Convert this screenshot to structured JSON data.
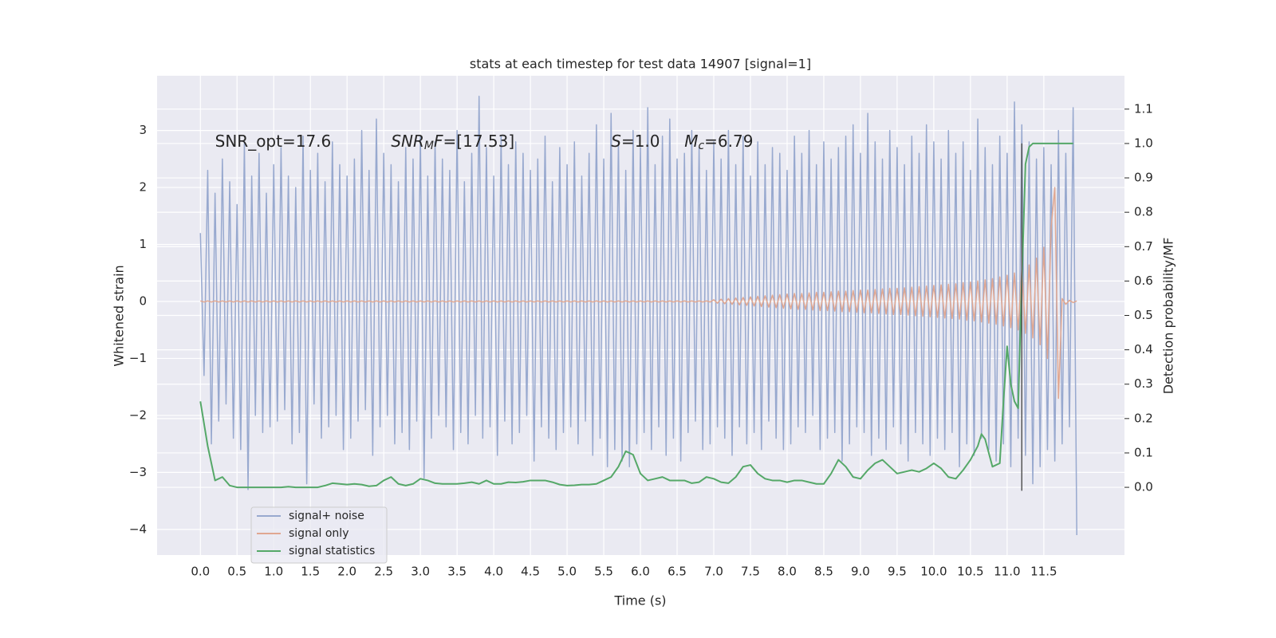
{
  "chart_data": {
    "type": "line",
    "title": "stats at each timestep for test data 14907 [signal=1]",
    "xlabel": "Time (s)",
    "ylabel": "Whitened strain",
    "y2label": "Detection probability/MF",
    "xlim": [
      -0.59,
      12.6
    ],
    "ylim": [
      -4.45,
      3.96
    ],
    "y2lim": [
      -0.197,
      1.197
    ],
    "xticks": [
      {
        "value": 0,
        "label": "0.0"
      },
      0.5,
      {
        "value": 1,
        "label": "1.0"
      },
      1.5,
      {
        "value": 2,
        "label": "2.0"
      },
      2.5,
      {
        "value": 3,
        "label": "3.0"
      },
      3.5,
      {
        "value": 4,
        "label": "4.0"
      },
      4.5,
      {
        "value": 5,
        "label": "5.0"
      },
      5.5,
      {
        "value": 6,
        "label": "6.0"
      },
      6.5,
      {
        "value": 7,
        "label": "7.0"
      },
      7.5,
      {
        "value": 8,
        "label": "8.0"
      },
      8.5,
      {
        "value": 9,
        "label": "9.0"
      },
      9.5,
      {
        "value": 10,
        "label": "10.0"
      },
      10.5,
      {
        "value": 11,
        "label": "11.0"
      },
      11.5
    ],
    "yticks": [
      {
        "value": -4,
        "label": "−4"
      },
      {
        "value": -3,
        "label": "−3"
      },
      {
        "value": -2,
        "label": "−2"
      },
      {
        "value": -1,
        "label": "−1"
      },
      0,
      1,
      2,
      3
    ],
    "y2ticks": [
      {
        "value": 0,
        "label": "0.0"
      },
      0.1,
      0.2,
      0.3,
      0.4,
      0.5,
      0.6,
      0.7,
      0.8,
      0.9,
      {
        "value": 1,
        "label": "1.0"
      },
      1.1
    ],
    "grid": true,
    "legend": "lower left",
    "x": [
      0,
      0.05,
      0.1,
      0.15,
      0.2,
      0.25,
      0.3,
      0.35,
      0.4,
      0.45,
      0.5,
      0.55,
      0.6,
      0.65,
      0.7,
      0.75,
      0.8,
      0.85,
      0.9,
      0.95,
      1,
      1.05,
      1.1,
      1.15,
      1.2,
      1.25,
      1.3,
      1.35,
      1.4,
      1.45,
      1.5,
      1.55,
      1.6,
      1.65,
      1.7,
      1.75,
      1.8,
      1.85,
      1.9,
      1.95,
      2,
      2.05,
      2.1,
      2.15,
      2.2,
      2.25,
      2.3,
      2.35,
      2.4,
      2.45,
      2.5,
      2.55,
      2.6,
      2.65,
      2.7,
      2.75,
      2.8,
      2.85,
      2.9,
      2.95,
      3,
      3.05,
      3.1,
      3.15,
      3.2,
      3.25,
      3.3,
      3.35,
      3.4,
      3.45,
      3.5,
      3.55,
      3.6,
      3.65,
      3.7,
      3.75,
      3.8,
      3.85,
      3.9,
      3.95,
      4,
      4.05,
      4.1,
      4.15,
      4.2,
      4.25,
      4.3,
      4.35,
      4.4,
      4.45,
      4.5,
      4.55,
      4.6,
      4.65,
      4.7,
      4.75,
      4.8,
      4.85,
      4.9,
      4.95,
      5,
      5.05,
      5.1,
      5.15,
      5.2,
      5.25,
      5.3,
      5.35,
      5.4,
      5.45,
      5.5,
      5.55,
      5.6,
      5.65,
      5.7,
      5.75,
      5.8,
      5.85,
      5.9,
      5.95,
      6,
      6.05,
      6.1,
      6.15,
      6.2,
      6.25,
      6.3,
      6.35,
      6.4,
      6.45,
      6.5,
      6.55,
      6.6,
      6.65,
      6.7,
      6.75,
      6.8,
      6.85,
      6.9,
      6.95,
      7,
      7.05,
      7.1,
      7.15,
      7.2,
      7.25,
      7.3,
      7.35,
      7.4,
      7.45,
      7.5,
      7.55,
      7.6,
      7.65,
      7.7,
      7.75,
      7.8,
      7.85,
      7.9,
      7.95,
      8,
      8.05,
      8.1,
      8.15,
      8.2,
      8.25,
      8.3,
      8.35,
      8.4,
      8.45,
      8.5,
      8.55,
      8.6,
      8.65,
      8.7,
      8.75,
      8.8,
      8.85,
      8.9,
      8.95,
      9,
      9.05,
      9.1,
      9.15,
      9.2,
      9.25,
      9.3,
      9.35,
      9.4,
      9.45,
      9.5,
      9.55,
      9.6,
      9.65,
      9.7,
      9.75,
      9.8,
      9.85,
      9.9,
      9.95,
      10,
      10.05,
      10.1,
      10.15,
      10.2,
      10.25,
      10.3,
      10.35,
      10.4,
      10.45,
      10.5,
      10.55,
      10.6,
      10.65,
      10.7,
      10.75,
      10.8,
      10.85,
      10.9,
      10.95,
      11,
      11.05,
      11.1,
      11.15,
      11.2,
      11.25,
      11.3,
      11.35,
      11.4,
      11.45,
      11.5,
      11.55,
      11.6,
      11.65,
      11.7,
      11.75,
      11.8,
      11.85,
      11.9,
      11.95
    ],
    "series": [
      {
        "name": "signal+ noise",
        "color": "#98a9cf",
        "axis": "y",
        "values": [
          1.2,
          -1.3,
          2.3,
          -2.5,
          1.9,
          -2.1,
          2.5,
          -1.8,
          2.1,
          -2.4,
          1.7,
          -2.6,
          2.8,
          -3.3,
          2.2,
          -2.0,
          2.6,
          -2.3,
          1.9,
          -2.2,
          2.4,
          -2.1,
          2.7,
          -1.9,
          2.2,
          -2.5,
          2.0,
          -2.3,
          2.9,
          -3.2,
          2.3,
          -1.8,
          2.6,
          -2.4,
          2.1,
          -2.2,
          2.8,
          -2.0,
          2.4,
          -2.6,
          2.2,
          -2.4,
          2.5,
          -2.1,
          3.0,
          -1.9,
          2.3,
          -2.7,
          3.2,
          -2.2,
          2.6,
          -2.0,
          2.4,
          -2.5,
          2.1,
          -2.3,
          2.7,
          -2.6,
          2.5,
          -2.1,
          2.9,
          -3.1,
          2.2,
          -2.4,
          2.8,
          -2.0,
          2.5,
          -2.2,
          2.3,
          -2.6,
          3.0,
          -2.3,
          2.1,
          -2.5,
          2.6,
          -2.0,
          3.6,
          -2.4,
          2.7,
          -2.2,
          2.2,
          -2.7,
          2.9,
          -2.1,
          2.4,
          -2.5,
          2.8,
          -2.3,
          2.6,
          -2.0,
          2.3,
          -2.8,
          2.5,
          -2.2,
          2.9,
          -2.4,
          2.1,
          -2.6,
          2.7,
          -2.3,
          2.4,
          -2.2,
          2.8,
          -2.5,
          2.2,
          -2.1,
          2.6,
          -2.7,
          3.1,
          -2.4,
          2.5,
          -2.9,
          3.3,
          -2.6,
          2.8,
          -2.8,
          2.3,
          -2.9,
          3.0,
          -2.5,
          2.7,
          -2.3,
          3.4,
          -2.6,
          2.4,
          -2.2,
          2.9,
          -2.7,
          3.2,
          -2.4,
          2.5,
          -2.8,
          2.6,
          -2.3,
          3.0,
          -2.1,
          2.7,
          -2.6,
          2.3,
          -2.5,
          2.8,
          -2.2,
          2.5,
          -2.4,
          3.0,
          -2.7,
          2.4,
          -2.2,
          2.9,
          -2.5,
          2.2,
          -2.3,
          2.8,
          -2.6,
          2.4,
          -2.1,
          2.7,
          -2.4,
          2.6,
          -2.6,
          2.3,
          -2.5,
          2.9,
          -2.2,
          2.6,
          -2.3,
          3.0,
          -2.0,
          2.4,
          -2.6,
          2.8,
          -2.4,
          2.5,
          -2.3,
          2.7,
          -2.8,
          2.9,
          -2.5,
          3.1,
          -2.2,
          2.6,
          -2.3,
          3.3,
          -2.7,
          2.8,
          -2.4,
          2.5,
          -2.6,
          3.0,
          -2.2,
          2.7,
          -2.5,
          2.4,
          -2.8,
          2.9,
          -2.3,
          2.6,
          -2.5,
          3.1,
          -2.7,
          2.8,
          -2.4,
          2.5,
          -2.6,
          3.0,
          -2.3,
          2.6,
          -2.9,
          2.8,
          -2.5,
          2.3,
          -2.7,
          3.2,
          -2.4,
          2.7,
          -2.6,
          2.4,
          -2.8,
          2.9,
          -2.5,
          2.6,
          -2.9,
          3.5,
          -2.4,
          3.1,
          -2.7,
          2.8,
          -3.2,
          2.5,
          -2.9,
          2.7,
          -2.6,
          2.4,
          -2.8,
          3.0,
          -2.5,
          2.6,
          -2.2,
          3.4,
          -4.1
        ]
      },
      {
        "name": "signal only",
        "color": "#e0a791",
        "axis": "y",
        "values": [
          0.01,
          -0.01,
          0.01,
          -0.01,
          0.01,
          -0.01,
          0.01,
          -0.01,
          0.01,
          -0.01,
          0.01,
          -0.01,
          0.01,
          -0.01,
          0.01,
          -0.01,
          0.01,
          -0.01,
          0.01,
          -0.01,
          0.01,
          -0.01,
          0.01,
          -0.01,
          0.01,
          -0.01,
          0.01,
          -0.01,
          0.01,
          -0.01,
          0.01,
          -0.01,
          0.01,
          -0.01,
          0.01,
          -0.01,
          0.01,
          -0.01,
          0.01,
          -0.01,
          0.01,
          -0.01,
          0.01,
          -0.01,
          0.01,
          -0.01,
          0.01,
          -0.01,
          0.01,
          -0.01,
          0.01,
          -0.01,
          0.01,
          -0.01,
          0.01,
          -0.01,
          0.01,
          -0.01,
          0.01,
          -0.01,
          0.01,
          -0.01,
          0.01,
          -0.01,
          0.01,
          -0.01,
          0.01,
          -0.01,
          0.01,
          -0.01,
          0.01,
          -0.01,
          0.01,
          -0.01,
          0.01,
          -0.01,
          0.01,
          -0.01,
          0.01,
          -0.01,
          0.01,
          -0.01,
          0.01,
          -0.01,
          0.01,
          -0.01,
          0.01,
          -0.01,
          0.01,
          -0.01,
          0.01,
          -0.01,
          0.01,
          -0.01,
          0.01,
          -0.01,
          0.01,
          -0.01,
          0.01,
          -0.01,
          0.01,
          -0.01,
          0.01,
          -0.01,
          0.01,
          -0.01,
          0.01,
          -0.01,
          0.01,
          -0.01,
          0.01,
          -0.01,
          0.01,
          -0.01,
          0.01,
          -0.01,
          0.01,
          -0.01,
          0.01,
          -0.01,
          0.01,
          -0.01,
          0.01,
          -0.01,
          0.01,
          -0.01,
          0.01,
          -0.01,
          0.01,
          -0.01,
          0.01,
          -0.01,
          0.01,
          -0.01,
          0.01,
          -0.01,
          0.01,
          -0.01,
          0.01,
          -0.01,
          0.03,
          -0.03,
          0.04,
          -0.04,
          0.05,
          -0.05,
          0.06,
          -0.06,
          0.07,
          -0.07,
          0.08,
          -0.08,
          0.09,
          -0.09,
          0.1,
          -0.1,
          0.11,
          -0.11,
          0.12,
          -0.12,
          0.13,
          -0.13,
          0.14,
          -0.14,
          0.14,
          -0.14,
          0.15,
          -0.15,
          0.16,
          -0.16,
          0.16,
          -0.16,
          0.17,
          -0.17,
          0.18,
          -0.18,
          0.18,
          -0.18,
          0.19,
          -0.19,
          0.2,
          -0.2,
          0.2,
          -0.2,
          0.21,
          -0.21,
          0.22,
          -0.22,
          0.23,
          -0.23,
          0.23,
          -0.23,
          0.24,
          -0.24,
          0.25,
          -0.25,
          0.26,
          -0.26,
          0.27,
          -0.27,
          0.28,
          -0.28,
          0.29,
          -0.29,
          0.3,
          -0.3,
          0.31,
          -0.31,
          0.33,
          -0.33,
          0.34,
          -0.34,
          0.36,
          -0.36,
          0.38,
          -0.38,
          0.4,
          -0.4,
          0.43,
          -0.43,
          0.46,
          -0.46,
          0.5,
          -0.5,
          0.56,
          -0.56,
          0.64,
          -0.64,
          0.76,
          -0.76,
          0.95,
          -1.0,
          1.3,
          2.0,
          -1.7,
          0.05,
          -0.05,
          0.02,
          -0.02,
          0.01
        ]
      },
      {
        "name": "signal statistics",
        "color": "#55a868",
        "axis": "y2",
        "x": [
          0,
          0.1,
          0.2,
          0.3,
          0.4,
          0.5,
          0.6,
          0.7,
          0.8,
          0.9,
          1,
          1.1,
          1.2,
          1.3,
          1.4,
          1.5,
          1.6,
          1.7,
          1.8,
          1.9,
          2,
          2.1,
          2.2,
          2.3,
          2.4,
          2.5,
          2.6,
          2.7,
          2.8,
          2.9,
          3,
          3.1,
          3.2,
          3.3,
          3.4,
          3.5,
          3.6,
          3.7,
          3.8,
          3.9,
          4,
          4.1,
          4.2,
          4.3,
          4.4,
          4.5,
          4.6,
          4.7,
          4.8,
          4.9,
          5,
          5.1,
          5.2,
          5.3,
          5.4,
          5.5,
          5.6,
          5.7,
          5.8,
          5.9,
          6,
          6.1,
          6.2,
          6.3,
          6.4,
          6.5,
          6.6,
          6.7,
          6.8,
          6.9,
          7,
          7.1,
          7.2,
          7.3,
          7.4,
          7.5,
          7.6,
          7.7,
          7.8,
          7.9,
          8,
          8.1,
          8.2,
          8.3,
          8.4,
          8.5,
          8.6,
          8.7,
          8.8,
          8.9,
          9,
          9.1,
          9.2,
          9.3,
          9.4,
          9.5,
          9.6,
          9.7,
          9.8,
          9.9,
          10,
          10.1,
          10.2,
          10.3,
          10.4,
          10.5,
          10.6,
          10.65,
          10.7,
          10.8,
          10.9,
          10.95,
          11,
          11.05,
          11.1,
          11.15,
          11.2,
          11.25,
          11.3,
          11.35,
          11.4,
          11.5,
          11.6,
          11.7,
          11.8,
          11.9
        ],
        "values": [
          0.25,
          0.12,
          0.02,
          0.03,
          0.005,
          0.0,
          0.0,
          0.0,
          0.0,
          0.0,
          0.0,
          0.0,
          0.002,
          0.0,
          0.0,
          0.0,
          0.0,
          0.005,
          0.012,
          0.01,
          0.008,
          0.01,
          0.008,
          0.003,
          0.005,
          0.02,
          0.03,
          0.01,
          0.005,
          0.01,
          0.025,
          0.02,
          0.012,
          0.01,
          0.01,
          0.01,
          0.012,
          0.015,
          0.01,
          0.02,
          0.01,
          0.01,
          0.015,
          0.014,
          0.016,
          0.02,
          0.02,
          0.02,
          0.015,
          0.008,
          0.005,
          0.006,
          0.008,
          0.008,
          0.01,
          0.02,
          0.03,
          0.06,
          0.105,
          0.095,
          0.04,
          0.02,
          0.025,
          0.03,
          0.02,
          0.02,
          0.02,
          0.012,
          0.015,
          0.03,
          0.025,
          0.015,
          0.012,
          0.03,
          0.06,
          0.065,
          0.04,
          0.025,
          0.02,
          0.02,
          0.015,
          0.02,
          0.02,
          0.015,
          0.01,
          0.01,
          0.04,
          0.08,
          0.06,
          0.03,
          0.025,
          0.05,
          0.07,
          0.08,
          0.06,
          0.04,
          0.045,
          0.05,
          0.045,
          0.055,
          0.07,
          0.055,
          0.03,
          0.025,
          0.05,
          0.08,
          0.12,
          0.155,
          0.14,
          0.06,
          0.07,
          0.25,
          0.41,
          0.3,
          0.25,
          0.23,
          0.6,
          0.94,
          0.99,
          1.0,
          1.0,
          1.0,
          1.0,
          1.0,
          1.0,
          1.0
        ]
      }
    ],
    "vline": {
      "x": 11.2,
      "ymin": -0.01,
      "ymax": 1.0,
      "axis": "y2",
      "color": "#555555"
    },
    "annotations": [
      {
        "x": 0.2,
        "y": 2.8,
        "segments": [
          {
            "text": "SNR_opt=17.6",
            "style": "normal"
          }
        ]
      },
      {
        "x": 2.6,
        "y": 2.8,
        "segments": [
          {
            "text": "SNR",
            "style": "italic"
          },
          {
            "text": "M",
            "style": "sub"
          },
          {
            "text": "F",
            "style": "italic"
          },
          {
            "text": "=[17.53]",
            "style": "normal"
          }
        ]
      },
      {
        "x": 5.6,
        "y": 2.8,
        "segments": [
          {
            "text": "S",
            "style": "italic"
          },
          {
            "text": "=1.0",
            "style": "normal"
          }
        ]
      },
      {
        "x": 6.6,
        "y": 2.8,
        "segments": [
          {
            "text": "M",
            "style": "italic"
          },
          {
            "text": "c",
            "style": "sub"
          },
          {
            "text": "=6.79",
            "style": "normal"
          }
        ]
      }
    ]
  }
}
